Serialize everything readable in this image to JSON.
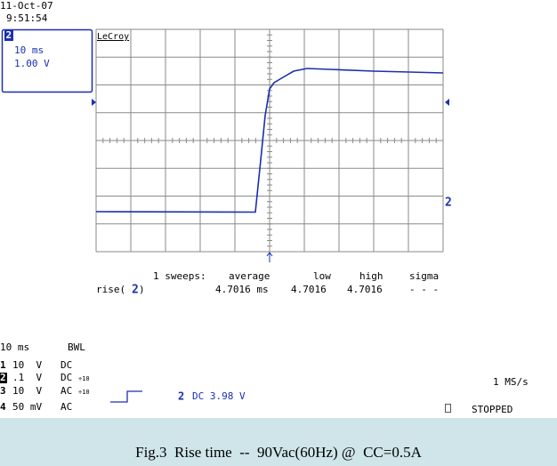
{
  "header": {
    "date": "11-Oct-07",
    "time": "9:51:54"
  },
  "trace_box": {
    "channel": "2",
    "timebase": "10 ms",
    "volts": "1.00 V"
  },
  "brand": "LeCroy",
  "trace_marker": "2",
  "measurement": {
    "sweeps": "1 sweeps:",
    "columns": [
      "average",
      "low",
      "high",
      "sigma"
    ],
    "name": "rise(",
    "channel": "2",
    "close": ")",
    "values": [
      "4.7016 ms",
      "4.7016",
      "4.7016",
      "- - -"
    ]
  },
  "settings": {
    "timebase": "10 ms",
    "bandwidth": "BWL"
  },
  "channels": [
    {
      "num": "1",
      "scale": "10  V",
      "coupling": "DC"
    },
    {
      "num": "2",
      "scale": ".1  V",
      "coupling": "DC",
      "probe": "÷10"
    },
    {
      "num": "3",
      "scale": "10  V",
      "coupling": "AC",
      "probe": "÷10"
    },
    {
      "num": "4",
      "scale": "50 mV",
      "coupling": "AC"
    }
  ],
  "trigger": {
    "channel": "2",
    "info": "DC 3.98 V"
  },
  "sample_rate": "1 MS/s",
  "status": "STOPPED",
  "caption": "Fig.3  Rise time  --  90Vac(60Hz) @  CC=0.5A"
}
